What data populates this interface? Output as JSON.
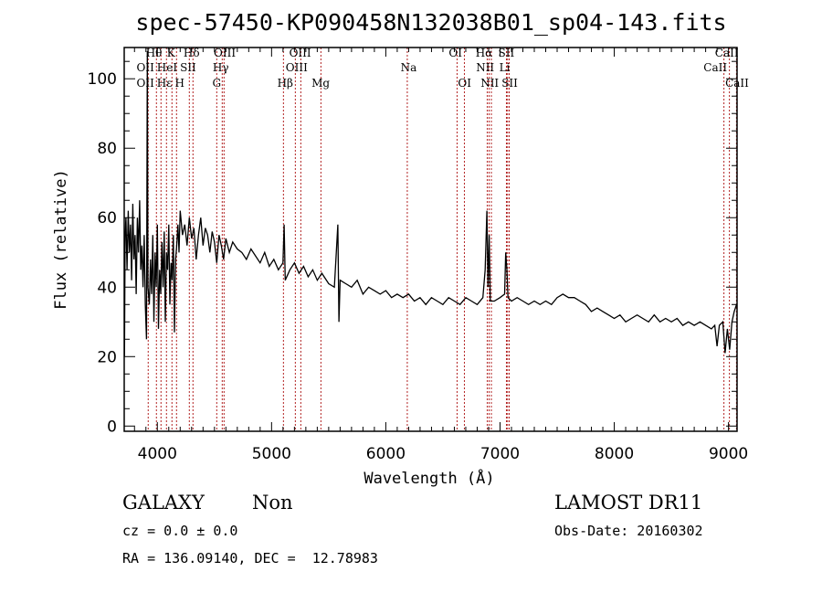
{
  "chart_data": {
    "type": "line",
    "title": "spec-57450-KP090458N132038B01_sp04-143.fits",
    "xlabel": "Wavelength (Å)",
    "ylabel": "Flux (relative)",
    "xlim": [
      3710,
      9075
    ],
    "ylim": [
      -1.5,
      109
    ],
    "xticks": [
      4000,
      5000,
      6000,
      7000,
      8000,
      9000
    ],
    "yticks": [
      0,
      20,
      40,
      60,
      80,
      100
    ],
    "grid": false,
    "colors": {
      "spectrum": "#000000",
      "lines": "#b22222"
    },
    "series": [
      {
        "name": "spectrum",
        "x": [
          3712,
          3718,
          3725,
          3735,
          3745,
          3755,
          3765,
          3775,
          3785,
          3795,
          3805,
          3815,
          3825,
          3835,
          3845,
          3855,
          3865,
          3875,
          3885,
          3895,
          3905,
          3912,
          3918,
          3930,
          3940,
          3950,
          3960,
          3970,
          3980,
          3990,
          4000,
          4010,
          4020,
          4030,
          4040,
          4050,
          4060,
          4070,
          4080,
          4090,
          4100,
          4110,
          4120,
          4130,
          4140,
          4150,
          4160,
          4170,
          4180,
          4190,
          4200,
          4220,
          4240,
          4260,
          4280,
          4300,
          4320,
          4340,
          4360,
          4380,
          4400,
          4420,
          4440,
          4460,
          4480,
          4500,
          4520,
          4540,
          4560,
          4580,
          4600,
          4630,
          4660,
          4700,
          4740,
          4780,
          4820,
          4860,
          4900,
          4940,
          4980,
          5020,
          5060,
          5100,
          5110,
          5120,
          5160,
          5200,
          5240,
          5280,
          5320,
          5360,
          5400,
          5440,
          5500,
          5550,
          5580,
          5590,
          5600,
          5650,
          5700,
          5750,
          5800,
          5850,
          5900,
          5950,
          6000,
          6050,
          6100,
          6150,
          6200,
          6250,
          6300,
          6350,
          6400,
          6450,
          6500,
          6550,
          6600,
          6650,
          6700,
          6750,
          6800,
          6850,
          6870,
          6885,
          6895,
          6905,
          6915,
          6950,
          7000,
          7040,
          7050,
          7060,
          7070,
          7100,
          7150,
          7200,
          7250,
          7300,
          7350,
          7400,
          7450,
          7500,
          7550,
          7600,
          7650,
          7700,
          7750,
          7800,
          7850,
          7900,
          7950,
          8000,
          8050,
          8100,
          8150,
          8200,
          8250,
          8300,
          8350,
          8400,
          8450,
          8500,
          8550,
          8600,
          8650,
          8700,
          8750,
          8800,
          8850,
          8880,
          8900,
          8920,
          8950,
          8970,
          8990,
          9010,
          9030,
          9050,
          9070
        ],
        "y": [
          20,
          55,
          60,
          45,
          62,
          50,
          58,
          42,
          64,
          48,
          55,
          38,
          60,
          50,
          65,
          45,
          52,
          40,
          55,
          35,
          25,
          108,
          40,
          35,
          48,
          38,
          55,
          30,
          50,
          40,
          58,
          28,
          45,
          38,
          53,
          40,
          56,
          30,
          50,
          45,
          58,
          35,
          47,
          42,
          55,
          27,
          48,
          52,
          58,
          50,
          62,
          55,
          58,
          52,
          60,
          54,
          57,
          48,
          55,
          60,
          52,
          57,
          55,
          50,
          56,
          53,
          47,
          55,
          52,
          48,
          54,
          50,
          53,
          51,
          50,
          48,
          51,
          49,
          47,
          50,
          46,
          48,
          45,
          47,
          58,
          42,
          45,
          47,
          44,
          46,
          43,
          45,
          42,
          44,
          41,
          40,
          58,
          30,
          42,
          41,
          40,
          42,
          38,
          40,
          39,
          38,
          39,
          37,
          38,
          37,
          38,
          36,
          37,
          35,
          37,
          36,
          35,
          37,
          36,
          35,
          37,
          36,
          35,
          37,
          45,
          62,
          40,
          55,
          36,
          36,
          37,
          38,
          50,
          45,
          37,
          36,
          37,
          36,
          35,
          36,
          35,
          36,
          35,
          37,
          38,
          37,
          37,
          36,
          35,
          33,
          34,
          33,
          32,
          31,
          32,
          30,
          31,
          32,
          31,
          30,
          32,
          30,
          31,
          30,
          31,
          29,
          30,
          29,
          30,
          29,
          28,
          29,
          23,
          29,
          30,
          21,
          28,
          22,
          30,
          33,
          35
        ]
      }
    ],
    "line_markers": [
      3920,
      3992,
      4032,
      4080,
      4128,
      4168,
      4280,
      4312,
      4520,
      4568,
      4584,
      5104,
      5208,
      5256,
      5432,
      6188,
      6624,
      6688,
      6888,
      6904,
      6924,
      7056,
      7066,
      7080,
      8960,
      9008,
      9070
    ],
    "line_labels": [
      {
        "name": "Hθ",
        "wl": 3970,
        "row": 1
      },
      {
        "name": "K",
        "wl": 4120,
        "row": 1
      },
      {
        "name": "Hδ",
        "wl": 4300,
        "row": 1
      },
      {
        "name": "OIII",
        "wl": 4590,
        "row": 1
      },
      {
        "name": "OIII",
        "wl": 5250,
        "row": 1
      },
      {
        "name": "OI",
        "wl": 6610,
        "row": 1
      },
      {
        "name": "Hα",
        "wl": 6860,
        "row": 1
      },
      {
        "name": "SII",
        "wl": 7055,
        "row": 1
      },
      {
        "name": "CaII",
        "wl": 8985,
        "row": 1
      },
      {
        "name": "OII",
        "wl": 3895,
        "row": 2
      },
      {
        "name": "HeI",
        "wl": 4030,
        "row": 2
      },
      {
        "name": "SII",
        "wl": 4265,
        "row": 2
      },
      {
        "name": "Hγ",
        "wl": 4555,
        "row": 2
      },
      {
        "name": "OIII",
        "wl": 5220,
        "row": 2
      },
      {
        "name": "Na",
        "wl": 6200,
        "row": 2
      },
      {
        "name": "NII",
        "wl": 6870,
        "row": 2
      },
      {
        "name": "Li",
        "wl": 7040,
        "row": 2
      },
      {
        "name": "CaII",
        "wl": 8885,
        "row": 2
      },
      {
        "name": "OII",
        "wl": 3895,
        "row": 3
      },
      {
        "name": "Hε",
        "wl": 3990,
        "row": 3
      },
      {
        "name": "H",
        "wl": 4140,
        "row": 3
      },
      {
        "name": "G",
        "wl": 4520,
        "row": 3
      },
      {
        "name": "Hβ",
        "wl": 5120,
        "row": 3
      },
      {
        "name": "Mg",
        "wl": 5430,
        "row": 3
      },
      {
        "name": "OI",
        "wl": 6690,
        "row": 3
      },
      {
        "name": "NII",
        "wl": 6910,
        "row": 3
      },
      {
        "name": "SII",
        "wl": 7080,
        "row": 3
      },
      {
        "name": "CaII",
        "wl": 9075,
        "row": 3
      }
    ]
  },
  "info": {
    "object_class": "GALAXY",
    "subclass": "Non",
    "survey": "LAMOST DR11",
    "cz": "cz = 0.0 ± 0.0",
    "obs_date": "Obs-Date: 20160302",
    "coords": "RA = 136.09140, DEC =  12.78983"
  }
}
